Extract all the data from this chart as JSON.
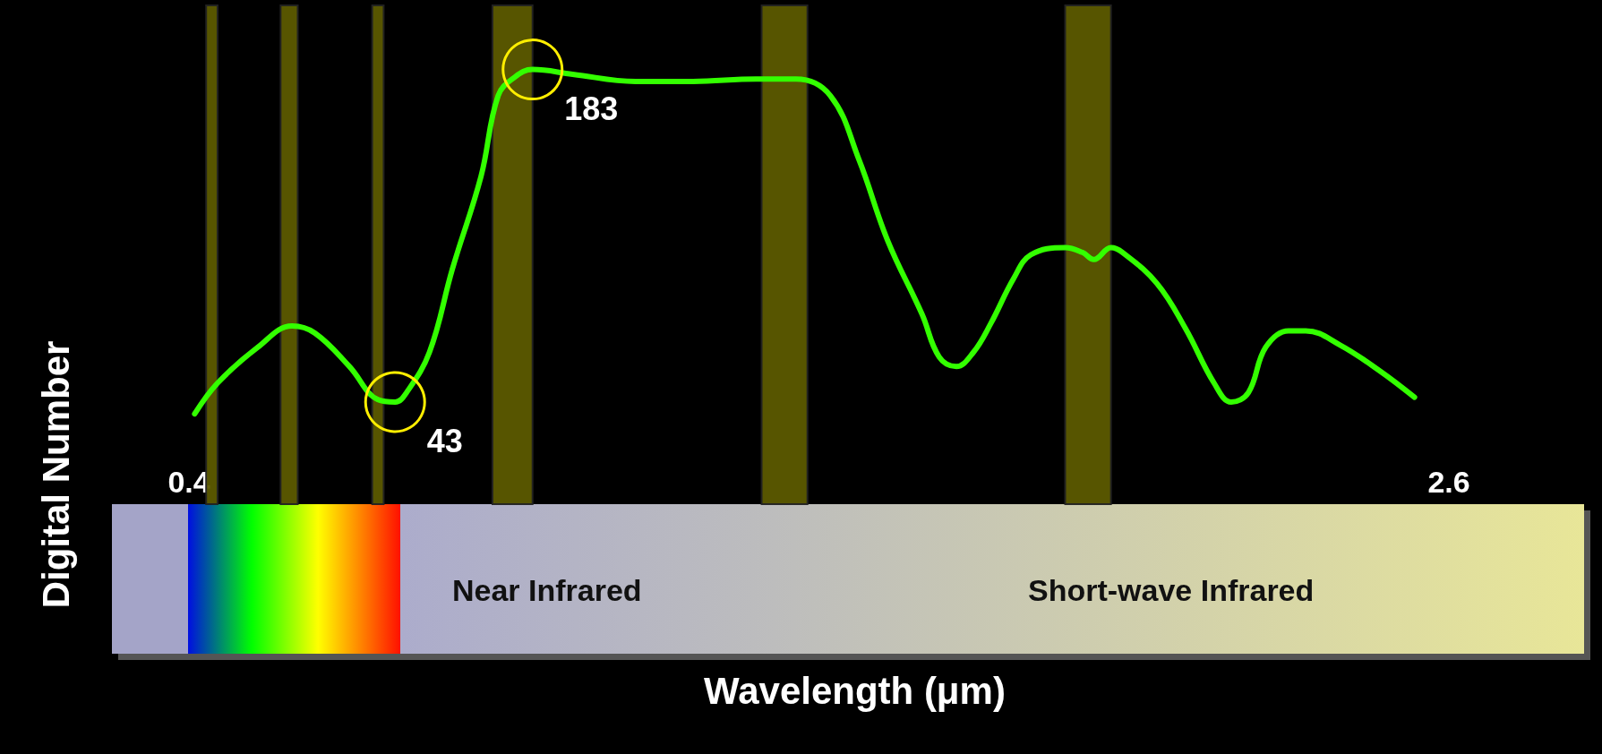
{
  "chart_data": {
    "type": "line",
    "xlabel": "Wavelength (μm)",
    "ylabel": "Digital Number",
    "xlim": [
      0.4,
      2.6
    ],
    "xticks": [
      0.4,
      2.6
    ],
    "tick_labels": "x",
    "grid": false,
    "annotations": [
      "Near Infrared",
      "Short-wave Infrared"
    ],
    "bands": [
      {
        "axis": "x",
        "from": 0.43,
        "to": 0.45,
        "color": "#5c5a00"
      },
      {
        "axis": "x",
        "from": 0.56,
        "to": 0.59,
        "color": "#5c5a00"
      },
      {
        "axis": "x",
        "from": 0.72,
        "to": 0.74,
        "color": "#5c5a00"
      },
      {
        "axis": "x",
        "from": 0.93,
        "to": 1.0,
        "color": "#5c5a00"
      },
      {
        "axis": "x",
        "from": 1.4,
        "to": 1.48,
        "color": "#5c5a00"
      },
      {
        "axis": "x",
        "from": 1.93,
        "to": 2.01,
        "color": "#5c5a00"
      }
    ],
    "series": [
      {
        "color": "#33ff00",
        "x": [
          0.41,
          0.45,
          0.52,
          0.58,
          0.62,
          0.68,
          0.73,
          0.76,
          0.78,
          0.82,
          0.86,
          0.91,
          0.94,
          0.97,
          1.0,
          1.07,
          1.18,
          1.28,
          1.39,
          1.46,
          1.52,
          1.57,
          1.62,
          1.68,
          1.71,
          1.74,
          1.77,
          1.8,
          1.84,
          1.87,
          1.93,
          1.96,
          1.98,
          2.01,
          2.03,
          2.09,
          2.14,
          2.19,
          2.22,
          2.25,
          2.28,
          2.32,
          2.35,
          2.41,
          2.48,
          2.54
        ],
        "values": [
          38,
          51,
          66,
          75,
          72,
          58,
          44,
          43,
          47,
          64,
          99,
          138,
          172,
          180,
          183,
          181,
          178,
          178,
          179,
          179,
          172,
          145,
          111,
          80,
          62,
          58,
          64,
          76,
          95,
          105,
          108,
          106,
          103,
          108,
          106,
          93,
          74,
          51,
          43,
          47,
          66,
          73,
          73,
          67,
          56,
          45
        ],
        "value_labels": [
          null,
          null,
          null,
          null,
          null,
          null,
          null,
          "43",
          null,
          null,
          null,
          null,
          null,
          null,
          "183",
          null,
          null,
          null,
          null,
          null,
          null,
          null,
          null,
          null,
          null,
          null,
          null,
          null,
          null,
          null,
          null,
          null,
          null,
          null,
          null,
          null,
          null,
          null,
          null,
          null,
          null,
          null,
          null,
          null,
          null,
          null
        ]
      }
    ]
  }
}
